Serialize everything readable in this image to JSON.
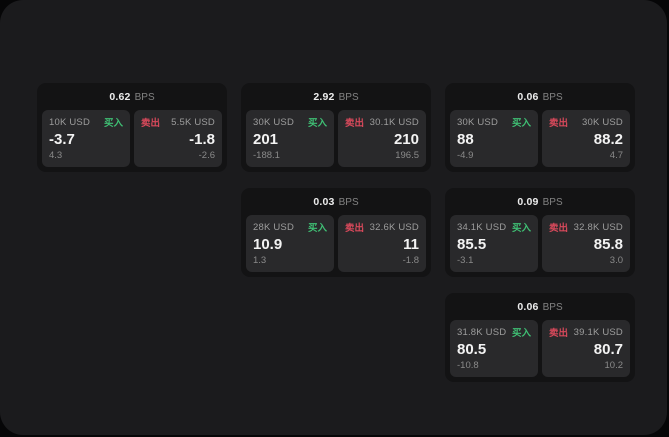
{
  "labels": {
    "buy": "买入",
    "sell": "卖出",
    "bps_unit": "BPS"
  },
  "colors": {
    "buy_green": "#3fbf74",
    "sell_red": "#d8495b",
    "panel_bg": "#1b1b1d",
    "card_bg": "#131314",
    "tile_bg": "#29292b",
    "outer_bg": "#060607"
  },
  "cards": [
    {
      "row": 1,
      "col": 1,
      "bps": "0.62",
      "buy": {
        "amount": "10K USD",
        "price": "-3.7",
        "delta": "4.3"
      },
      "sell": {
        "amount": "5.5K USD",
        "price": "-1.8",
        "delta": "-2.6"
      }
    },
    {
      "row": 1,
      "col": 2,
      "bps": "2.92",
      "buy": {
        "amount": "30K USD",
        "price": "201",
        "delta": "-188.1"
      },
      "sell": {
        "amount": "30.1K USD",
        "price": "210",
        "delta": "196.5"
      }
    },
    {
      "row": 1,
      "col": 3,
      "bps": "0.06",
      "buy": {
        "amount": "30K USD",
        "price": "88",
        "delta": "-4.9"
      },
      "sell": {
        "amount": "30K USD",
        "price": "88.2",
        "delta": "4.7"
      }
    },
    {
      "row": 2,
      "col": 2,
      "bps": "0.03",
      "buy": {
        "amount": "28K USD",
        "price": "10.9",
        "delta": "1.3"
      },
      "sell": {
        "amount": "32.6K USD",
        "price": "11",
        "delta": "-1.8"
      }
    },
    {
      "row": 2,
      "col": 3,
      "bps": "0.09",
      "buy": {
        "amount": "34.1K USD",
        "price": "85.5",
        "delta": "-3.1"
      },
      "sell": {
        "amount": "32.8K USD",
        "price": "85.8",
        "delta": "3.0"
      }
    },
    {
      "row": 3,
      "col": 3,
      "bps": "0.06",
      "buy": {
        "amount": "31.8K USD",
        "price": "80.5",
        "delta": "-10.8"
      },
      "sell": {
        "amount": "39.1K USD",
        "price": "80.7",
        "delta": "10.2"
      }
    }
  ]
}
